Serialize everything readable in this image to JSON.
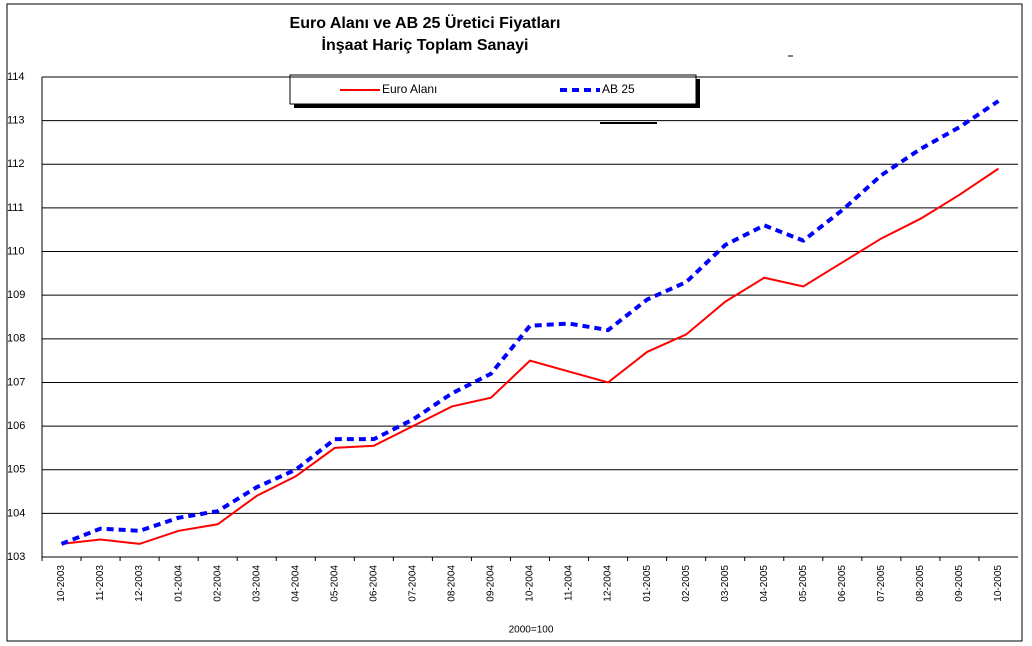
{
  "chart_data": {
    "type": "line",
    "title": "Euro Alanı ve AB 25 Üretici Fiyatları",
    "subtitle": "İnşaat Hariç Toplam Sanayi",
    "x_label": "2000=100",
    "categories": [
      "10-2003",
      "11-2003",
      "12-2003",
      "01-2004",
      "02-2004",
      "03-2004",
      "04-2004",
      "05-2004",
      "06-2004",
      "07-2004",
      "08-2004",
      "09-2004",
      "10-2004",
      "11-2004",
      "12-2004",
      "01-2005",
      "02-2005",
      "03-2005",
      "04-2005",
      "05-2005",
      "06-2005",
      "07-2005",
      "08-2005",
      "09-2005",
      "10-2005"
    ],
    "series": [
      {
        "name": "Euro Alanı",
        "color": "#ff0000",
        "dashed": false,
        "values": [
          103.3,
          103.4,
          103.3,
          103.6,
          103.75,
          104.4,
          104.85,
          105.5,
          105.55,
          106.0,
          106.45,
          106.65,
          107.5,
          107.25,
          107.0,
          107.7,
          108.1,
          108.85,
          109.4,
          109.2,
          109.75,
          110.3,
          110.75,
          111.3,
          111.9
        ]
      },
      {
        "name": "AB 25",
        "color": "#0000ff",
        "dashed": true,
        "values": [
          103.3,
          103.65,
          103.6,
          103.9,
          104.05,
          104.6,
          105.0,
          105.7,
          105.7,
          106.15,
          106.75,
          107.2,
          108.3,
          108.35,
          108.2,
          108.9,
          109.3,
          110.15,
          110.6,
          110.25,
          110.95,
          111.75,
          112.35,
          112.85,
          113.45
        ]
      }
    ],
    "ylim": [
      103,
      114
    ],
    "yticks": [
      103,
      104,
      105,
      106,
      107,
      108,
      109,
      110,
      111,
      112,
      113,
      114
    ],
    "grid": true
  }
}
